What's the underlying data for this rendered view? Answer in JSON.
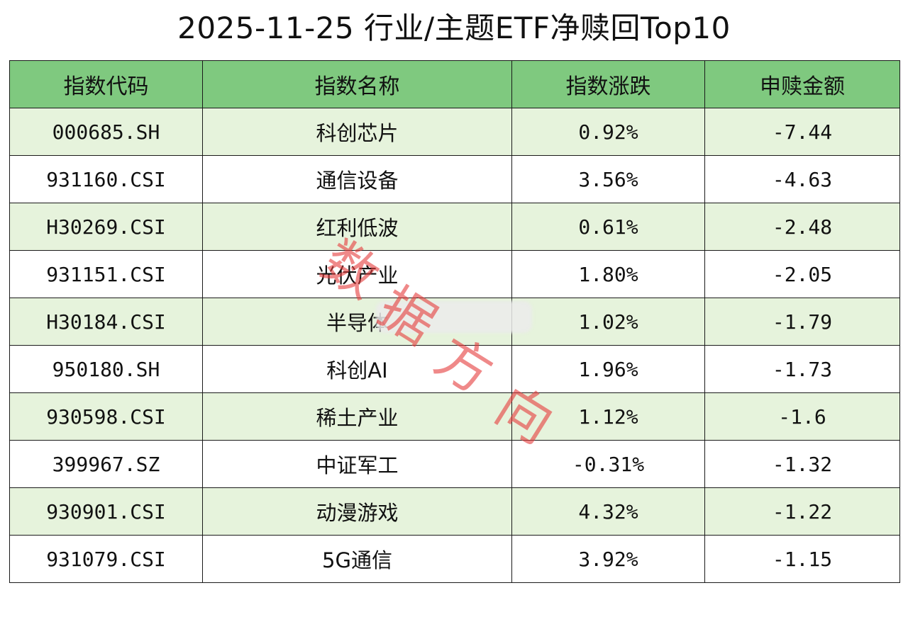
{
  "title": "2025-11-25 行业/主题ETF净赎回Top10",
  "table": {
    "headers": [
      "指数代码",
      "指数名称",
      "指数涨跌",
      "申赎金额"
    ],
    "rows": [
      {
        "code": "000685.SH",
        "name": "科创芯片",
        "change": "0.92%",
        "amount": "-7.44"
      },
      {
        "code": "931160.CSI",
        "name": "通信设备",
        "change": "3.56%",
        "amount": "-4.63"
      },
      {
        "code": "H30269.CSI",
        "name": "红利低波",
        "change": "0.61%",
        "amount": "-2.48"
      },
      {
        "code": "931151.CSI",
        "name": "光伏产业",
        "change": "1.80%",
        "amount": "-2.05"
      },
      {
        "code": "H30184.CSI",
        "name": "半导体",
        "change": "1.02%",
        "amount": "-1.79"
      },
      {
        "code": "950180.SH",
        "name": "科创AI",
        "change": "1.96%",
        "amount": "-1.73"
      },
      {
        "code": "930598.CSI",
        "name": "稀土产业",
        "change": "1.12%",
        "amount": "-1.6"
      },
      {
        "code": "399967.SZ",
        "name": "中证军工",
        "change": "-0.31%",
        "amount": "-1.32"
      },
      {
        "code": "930901.CSI",
        "name": "动漫游戏",
        "change": "4.32%",
        "amount": "-1.22"
      },
      {
        "code": "931079.CSI",
        "name": "5G通信",
        "change": "3.92%",
        "amount": "-1.15"
      }
    ]
  },
  "chart_data": {
    "type": "table",
    "title": "2025-11-25 行业/主题ETF净赎回Top10",
    "columns": [
      "指数代码",
      "指数名称",
      "指数涨跌",
      "申赎金额"
    ],
    "rows": [
      [
        "000685.SH",
        "科创芯片",
        "0.92%",
        -7.44
      ],
      [
        "931160.CSI",
        "通信设备",
        "3.56%",
        -4.63
      ],
      [
        "H30269.CSI",
        "红利低波",
        "0.61%",
        -2.48
      ],
      [
        "931151.CSI",
        "光伏产业",
        "1.80%",
        -2.05
      ],
      [
        "H30184.CSI",
        "半导体",
        "1.02%",
        -1.79
      ],
      [
        "950180.SH",
        "科创AI",
        "1.96%",
        -1.73
      ],
      [
        "930598.CSI",
        "稀土产业",
        "1.12%",
        -1.6
      ],
      [
        "399967.SZ",
        "中证军工",
        "-0.31%",
        -1.32
      ],
      [
        "930901.CSI",
        "动漫游戏",
        "4.32%",
        -1.22
      ],
      [
        "931079.CSI",
        "5G通信",
        "3.92%",
        -1.15
      ]
    ]
  },
  "watermark": {
    "text": "数据方向",
    "color": "#e63c3c"
  },
  "colors": {
    "header_bg": "#7fc97f",
    "row_alt_bg": "#e6f3dc",
    "border": "#1a1a1a"
  }
}
